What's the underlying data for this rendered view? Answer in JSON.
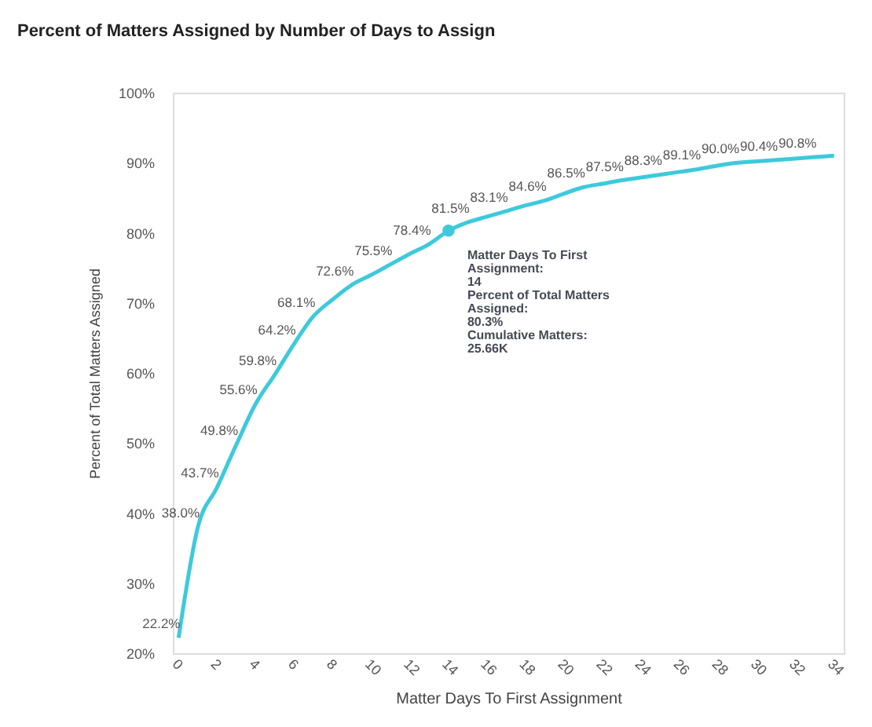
{
  "chart_data": {
    "type": "line",
    "title": "Percent of Matters Assigned by Number of Days to Assign",
    "xlabel": "Matter Days To First Assignment",
    "ylabel": "Percent of Total Matters Assigned",
    "x": [
      0,
      1,
      2,
      3,
      4,
      5,
      6,
      7,
      8,
      9,
      10,
      11,
      12,
      13,
      14,
      15,
      16,
      17,
      18,
      19,
      20,
      21,
      22,
      23,
      24,
      25,
      26,
      27,
      28,
      29,
      30,
      31,
      32,
      33,
      34
    ],
    "series": [
      {
        "color": "#3ec9dc",
        "values": [
          22.2,
          38.0,
          43.7,
          49.8,
          55.6,
          59.8,
          64.2,
          68.1,
          70.5,
          72.6,
          74.0,
          75.5,
          77.0,
          78.4,
          80.3,
          81.5,
          82.3,
          83.1,
          83.9,
          84.6,
          85.6,
          86.5,
          87.0,
          87.5,
          87.9,
          88.3,
          88.7,
          89.1,
          89.6,
          90.0,
          90.2,
          90.4,
          90.6,
          90.8,
          91.0
        ],
        "value_labels": [
          "22.2%",
          "38.0%",
          "43.7%",
          "49.8%",
          "55.6%",
          "59.8%",
          "64.2%",
          "68.1%",
          null,
          "72.6%",
          null,
          "75.5%",
          null,
          "78.4%",
          null,
          "81.5%",
          null,
          "83.1%",
          null,
          "84.6%",
          null,
          "86.5%",
          null,
          "87.5%",
          null,
          "88.3%",
          null,
          "89.1%",
          null,
          "90.0%",
          null,
          "90.4%",
          null,
          "90.8%",
          null
        ]
      }
    ],
    "xlim": [
      -0.3,
      34.5
    ],
    "xticks": [
      0,
      2,
      4,
      6,
      8,
      10,
      12,
      14,
      16,
      18,
      20,
      22,
      24,
      26,
      28,
      30,
      32,
      34
    ],
    "ylim": [
      20,
      100
    ],
    "yticks": [
      {
        "value": 20,
        "label": "20%"
      },
      {
        "value": 30,
        "label": "30%"
      },
      {
        "value": 40,
        "label": "40%"
      },
      {
        "value": 50,
        "label": "50%"
      },
      {
        "value": 60,
        "label": "60%"
      },
      {
        "value": 70,
        "label": "70%"
      },
      {
        "value": 80,
        "label": "80%"
      },
      {
        "value": 90,
        "label": "90%"
      },
      {
        "value": 100,
        "label": "100%"
      }
    ],
    "grid": false,
    "legend": false,
    "marker": "none",
    "line_style": "solid",
    "annotations": [
      {
        "text": "Matter Days To First\nAssignment:\n14\n\nPercent of Total Matters\nAssigned:\n80.3%\n\nCumulative Matters:\n25.66K",
        "x": 14,
        "y": 80.3
      }
    ]
  }
}
